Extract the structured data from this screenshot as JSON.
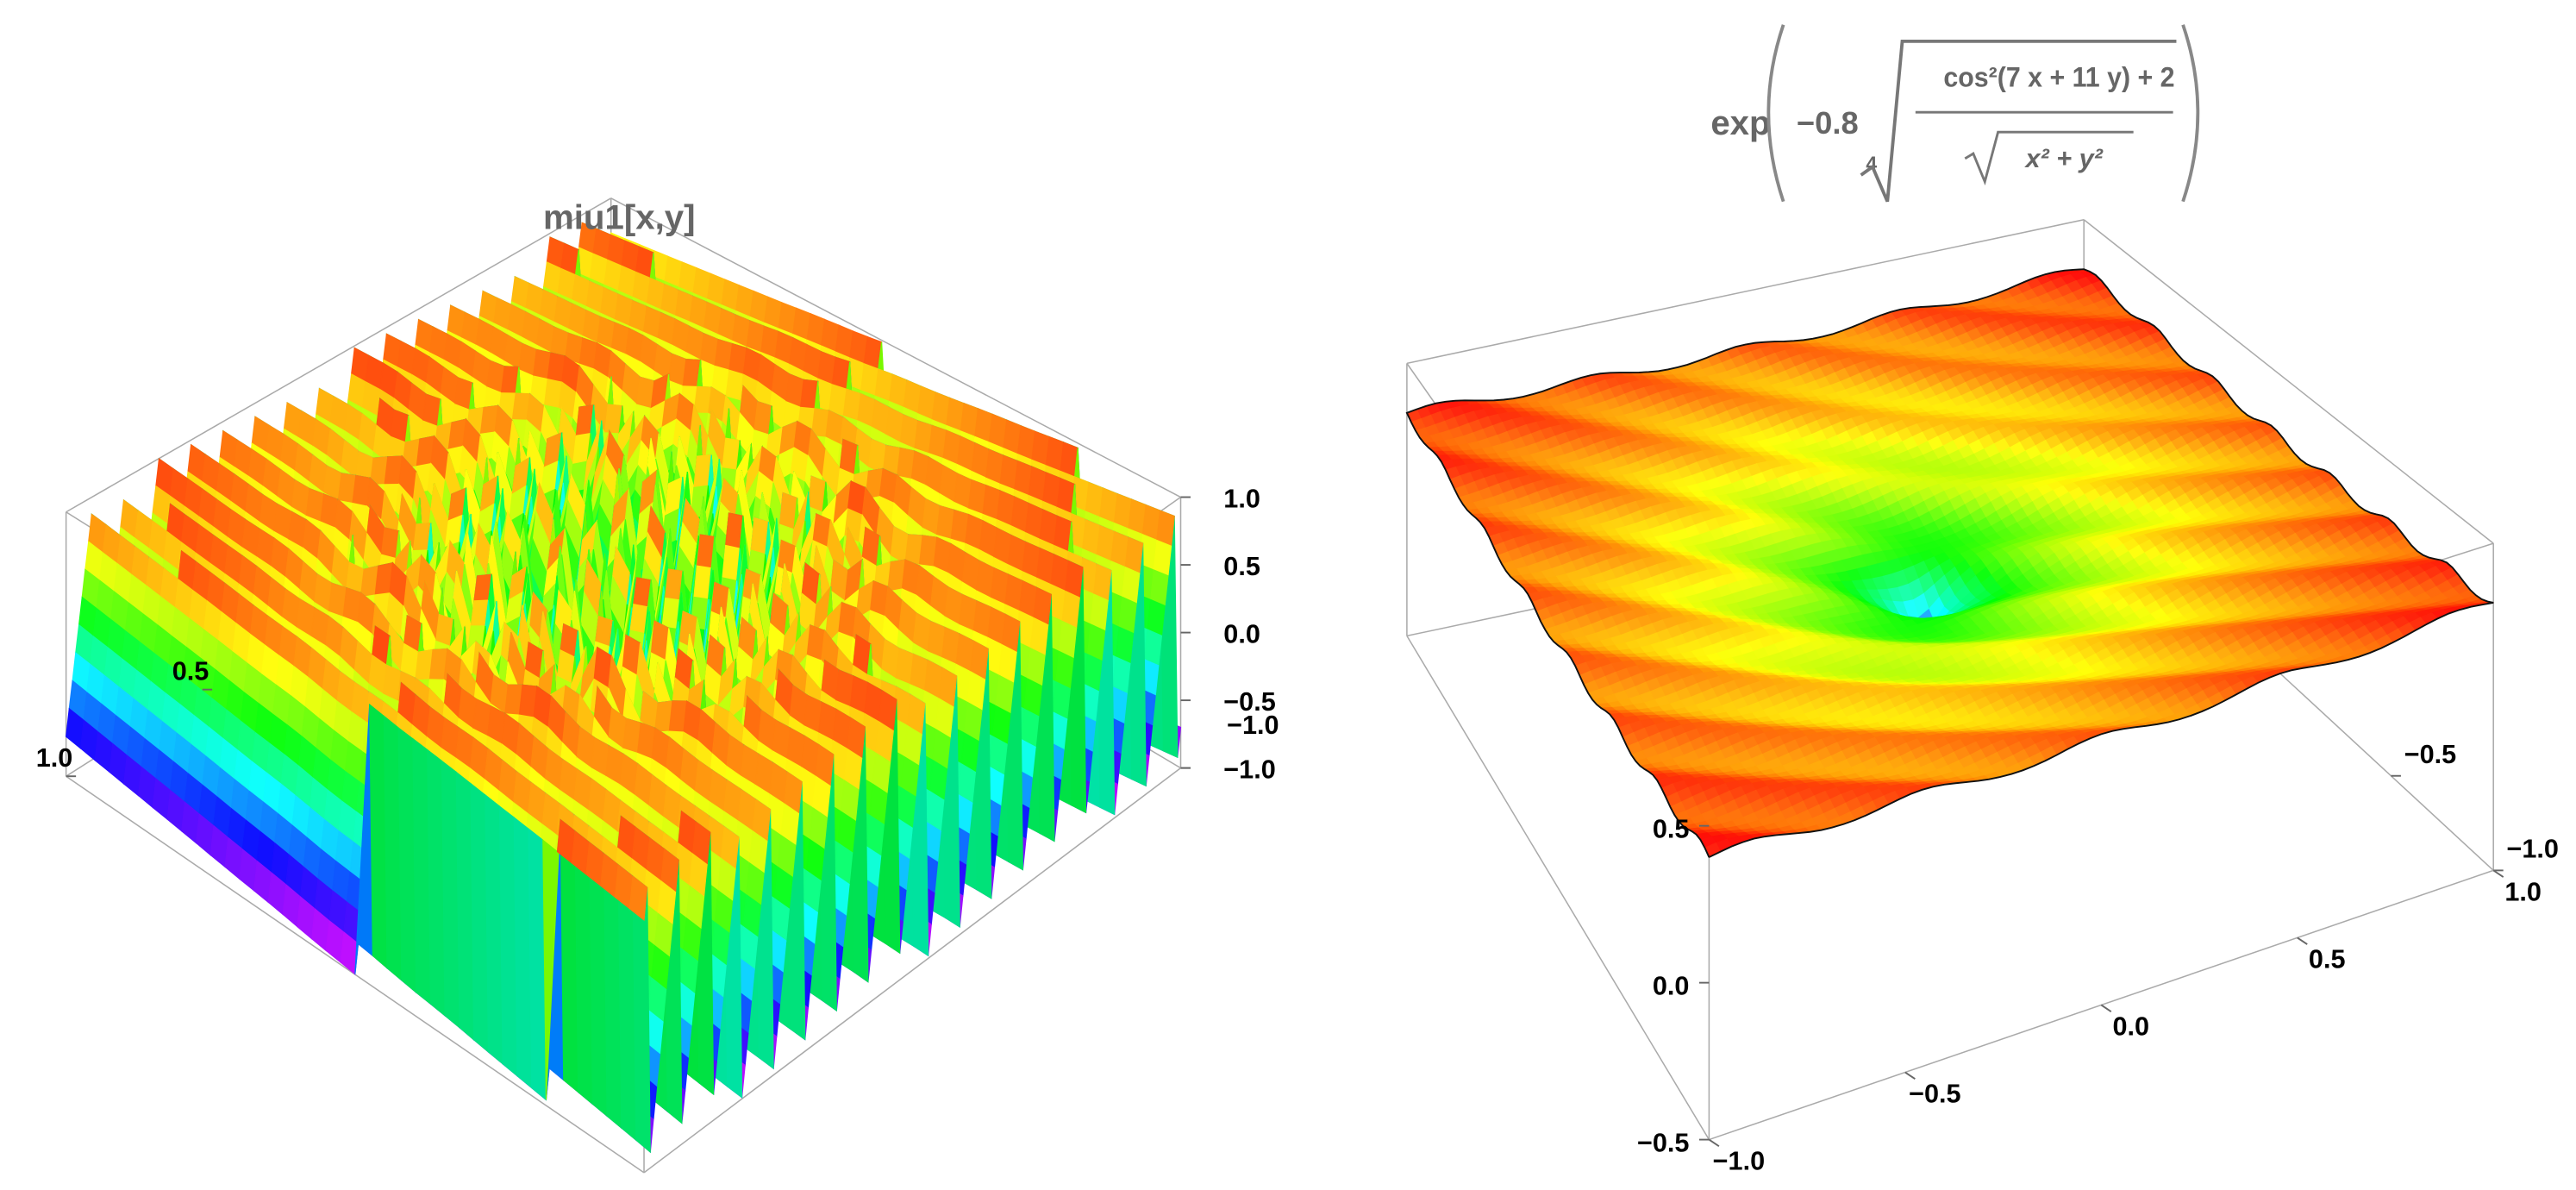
{
  "chart_data": [
    {
      "type": "surface3d",
      "title": "miu1[x,y]",
      "xlim": [
        -1,
        1
      ],
      "ylim": [
        -1,
        1
      ],
      "zlim": [
        -1,
        1
      ],
      "xticks": [
        0.5,
        {
          "value": 1,
          "label": "1.0"
        }
      ],
      "yticks": [
        {
          "value": -1,
          "label": "−1.0"
        }
      ],
      "zticks": [
        {
          "value": -1,
          "label": "−1.0"
        },
        {
          "value": -0.5,
          "label": "−0.5"
        },
        {
          "value": 0,
          "label": "0.0"
        },
        0.5,
        {
          "value": 1,
          "label": "1.0"
        }
      ],
      "colormap": "hue"
    },
    {
      "type": "surface3d",
      "title": {
        "function": "exp",
        "coefficient": "−0.8",
        "root_index": "4",
        "numerator": "cos²(7 x + 11 y) + 2",
        "denominator": "x² + y²"
      },
      "xlim": [
        -1,
        1
      ],
      "ylim": [
        -1,
        1
      ],
      "zlim": [
        -0.5,
        0.6
      ],
      "xticks": [
        {
          "value": -1,
          "label": "−1.0"
        },
        {
          "value": -0.5,
          "label": "−0.5"
        },
        {
          "value": 0,
          "label": "0.0"
        },
        0.5,
        {
          "value": 1,
          "label": "1.0"
        }
      ],
      "yticks": [
        {
          "value": -1,
          "label": "−1.0"
        },
        {
          "value": -0.5,
          "label": "−0.5"
        }
      ],
      "zticks": [
        {
          "value": -0.5,
          "label": "−0.5"
        },
        {
          "value": 0,
          "label": "0.0"
        },
        0.5
      ],
      "colormap": "hue"
    }
  ]
}
